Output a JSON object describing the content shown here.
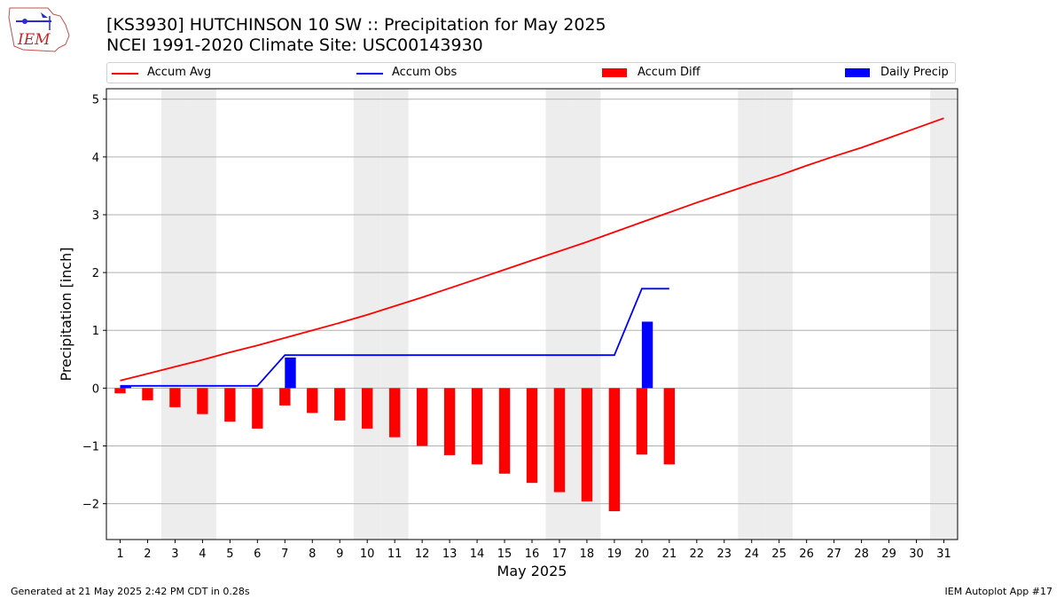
{
  "header": {
    "logo_text": "IEM",
    "title_line1": "[KS3930] HUTCHINSON 10 SW :: Precipitation for May 2025",
    "title_line2": "NCEI 1991-2020 Climate Site: USC00143930"
  },
  "legend": {
    "location": "top",
    "items": [
      {
        "label": "Accum Avg",
        "kind": "line",
        "color": "#ff0000"
      },
      {
        "label": "Accum Obs",
        "kind": "line",
        "color": "#0000ff"
      },
      {
        "label": "Accum Diff",
        "kind": "bar",
        "color": "#ff0000"
      },
      {
        "label": "Daily Precip",
        "kind": "bar",
        "color": "#0000ff"
      }
    ]
  },
  "footer": {
    "left": "Generated at 21 May 2025 2:42 PM CDT in 0.28s",
    "right": "IEM Autoplot App #17"
  },
  "chart_data": {
    "type": "bar",
    "title": "[KS3930] HUTCHINSON 10 SW :: Precipitation for May 2025",
    "subtitle": "NCEI 1991-2020 Climate Site: USC00143930",
    "xlabel": "May 2025",
    "ylabel": "Precipitation [inch]",
    "categories": [
      "1",
      "2",
      "3",
      "4",
      "5",
      "6",
      "7",
      "8",
      "9",
      "10",
      "11",
      "12",
      "13",
      "14",
      "15",
      "16",
      "17",
      "18",
      "19",
      "20",
      "21",
      "22",
      "23",
      "24",
      "25",
      "26",
      "27",
      "28",
      "29",
      "30",
      "31"
    ],
    "x_range": [
      0.5,
      31.5
    ],
    "ylim": [
      -2.62,
      5.18
    ],
    "yticks": [
      -2,
      -1,
      0,
      1,
      2,
      3,
      4,
      5
    ],
    "ytick_labels": [
      "−2",
      "−1",
      "0",
      "1",
      "2",
      "3",
      "4",
      "5"
    ],
    "grid": "horizontal",
    "weekend_shading_days": [
      3,
      4,
      10,
      11,
      17,
      18,
      24,
      25,
      31
    ],
    "colors": {
      "avg": "#ff0000",
      "obs": "#0000ff",
      "diff": "#ff0000",
      "daily": "#0000ff",
      "shade": "#ededed",
      "grid": "#b0b0b0"
    },
    "series": [
      {
        "name": "Accum Avg",
        "type": "line",
        "x": [
          1,
          2,
          3,
          4,
          5,
          6,
          7,
          8,
          9,
          10,
          11,
          12,
          13,
          14,
          15,
          16,
          17,
          18,
          19,
          20,
          21,
          22,
          23,
          24,
          25,
          26,
          27,
          28,
          29,
          30,
          31
        ],
        "values": [
          0.13,
          0.25,
          0.37,
          0.49,
          0.62,
          0.74,
          0.87,
          1.0,
          1.13,
          1.27,
          1.42,
          1.57,
          1.73,
          1.89,
          2.05,
          2.21,
          2.37,
          2.53,
          2.7,
          2.87,
          3.04,
          3.21,
          3.37,
          3.53,
          3.68,
          3.85,
          4.01,
          4.16,
          4.33,
          4.5,
          4.67
        ]
      },
      {
        "name": "Accum Obs",
        "type": "line",
        "x": [
          1,
          2,
          3,
          4,
          5,
          6,
          7,
          8,
          9,
          10,
          11,
          12,
          13,
          14,
          15,
          16,
          17,
          18,
          19,
          20,
          21
        ],
        "values": [
          0.04,
          0.04,
          0.04,
          0.04,
          0.04,
          0.04,
          0.57,
          0.57,
          0.57,
          0.57,
          0.57,
          0.57,
          0.57,
          0.57,
          0.57,
          0.57,
          0.57,
          0.57,
          0.57,
          1.72,
          1.72
        ]
      },
      {
        "name": "Accum Diff",
        "type": "bar",
        "x": [
          1,
          2,
          3,
          4,
          5,
          6,
          7,
          8,
          9,
          10,
          11,
          12,
          13,
          14,
          15,
          16,
          17,
          18,
          19,
          20,
          21
        ],
        "values": [
          -0.09,
          -0.21,
          -0.33,
          -0.45,
          -0.58,
          -0.7,
          -0.3,
          -0.43,
          -0.56,
          -0.7,
          -0.85,
          -1.0,
          -1.16,
          -1.32,
          -1.48,
          -1.64,
          -1.8,
          -1.96,
          -2.13,
          -1.15,
          -1.32
        ]
      },
      {
        "name": "Daily Precip",
        "type": "bar",
        "x": [
          1,
          2,
          3,
          4,
          5,
          6,
          7,
          8,
          9,
          10,
          11,
          12,
          13,
          14,
          15,
          16,
          17,
          18,
          19,
          20,
          21
        ],
        "values": [
          0.04,
          0,
          0,
          0,
          0,
          0,
          0.53,
          0,
          0,
          0,
          0,
          0,
          0,
          0,
          0,
          0,
          0,
          0,
          0,
          1.15,
          0
        ]
      }
    ]
  }
}
